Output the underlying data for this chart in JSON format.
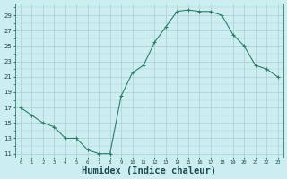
{
  "x": [
    0,
    1,
    2,
    3,
    4,
    5,
    6,
    7,
    8,
    9,
    10,
    11,
    12,
    13,
    14,
    15,
    16,
    17,
    18,
    19,
    20,
    21,
    22,
    23
  ],
  "y": [
    17,
    16,
    15,
    14.5,
    13,
    13,
    11.5,
    11,
    11,
    18.5,
    21.5,
    22.5,
    25.5,
    27.5,
    29.5,
    29.7,
    29.5,
    29.5,
    29.0,
    26.5,
    25,
    22.5,
    22,
    21
  ],
  "line_color": "#2e7d6e",
  "marker": "+",
  "bg_color": "#cdeef0",
  "grid_major_color": "#aacfcf",
  "xlabel": "Humidex (Indice chaleur)",
  "xlabel_fontsize": 7.5,
  "ytick_labels": [
    "11",
    "13",
    "15",
    "17",
    "19",
    "21",
    "23",
    "25",
    "27",
    "29"
  ],
  "ytick_vals": [
    11,
    13,
    15,
    17,
    19,
    21,
    23,
    25,
    27,
    29
  ],
  "xtick_vals": [
    0,
    1,
    2,
    3,
    4,
    5,
    6,
    7,
    8,
    9,
    10,
    11,
    12,
    13,
    14,
    15,
    16,
    17,
    18,
    19,
    20,
    21,
    22,
    23
  ],
  "ylim": [
    10.5,
    30.5
  ],
  "xlim": [
    -0.5,
    23.5
  ]
}
